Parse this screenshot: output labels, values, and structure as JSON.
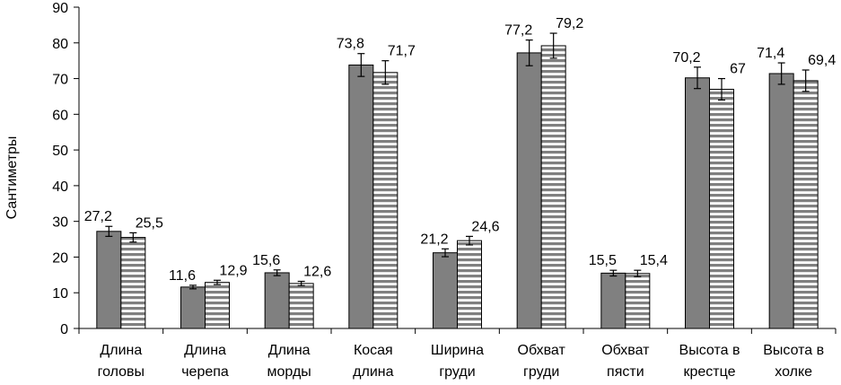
{
  "chart_data": {
    "type": "bar",
    "categories": [
      [
        "Длина",
        "головы"
      ],
      [
        "Длина",
        "черепа"
      ],
      [
        "Длина",
        "морды"
      ],
      [
        "Косая",
        "длина"
      ],
      [
        "Ширина",
        "груди"
      ],
      [
        "Обхват",
        "груди"
      ],
      [
        "Обхват",
        "пясти"
      ],
      [
        "Высота в",
        "крестце"
      ],
      [
        "Высота в",
        "холке"
      ]
    ],
    "series": [
      {
        "values": [
          27.2,
          11.6,
          15.6,
          73.8,
          21.2,
          77.2,
          15.5,
          70.2,
          71.4
        ],
        "labels": [
          "27,2",
          "11,6",
          "15,6",
          "73,8",
          "21,2",
          "77,2",
          "15,5",
          "70,2",
          "71,4"
        ],
        "errors": [
          1.4,
          0.5,
          0.8,
          3.2,
          1.1,
          3.6,
          0.8,
          3.0,
          3.0
        ],
        "color": "#808080",
        "pattern": "solid"
      },
      {
        "values": [
          25.5,
          12.9,
          12.6,
          71.7,
          24.6,
          79.2,
          15.4,
          67,
          69.4
        ],
        "labels": [
          "25,5",
          "12,9",
          "12,6",
          "71,7",
          "24,6",
          "79,2",
          "15,4",
          "67",
          "69,4"
        ],
        "errors": [
          1.3,
          0.6,
          0.6,
          3.3,
          1.2,
          3.5,
          0.9,
          3.0,
          3.0
        ],
        "color": "#808080",
        "pattern": "horizontal-stripes"
      }
    ],
    "ylabel": "Сантиметры",
    "ylim": [
      0,
      90
    ],
    "yticks": [
      0,
      10,
      20,
      30,
      40,
      50,
      60,
      70,
      80,
      90
    ],
    "grid": false,
    "legend": "none"
  }
}
